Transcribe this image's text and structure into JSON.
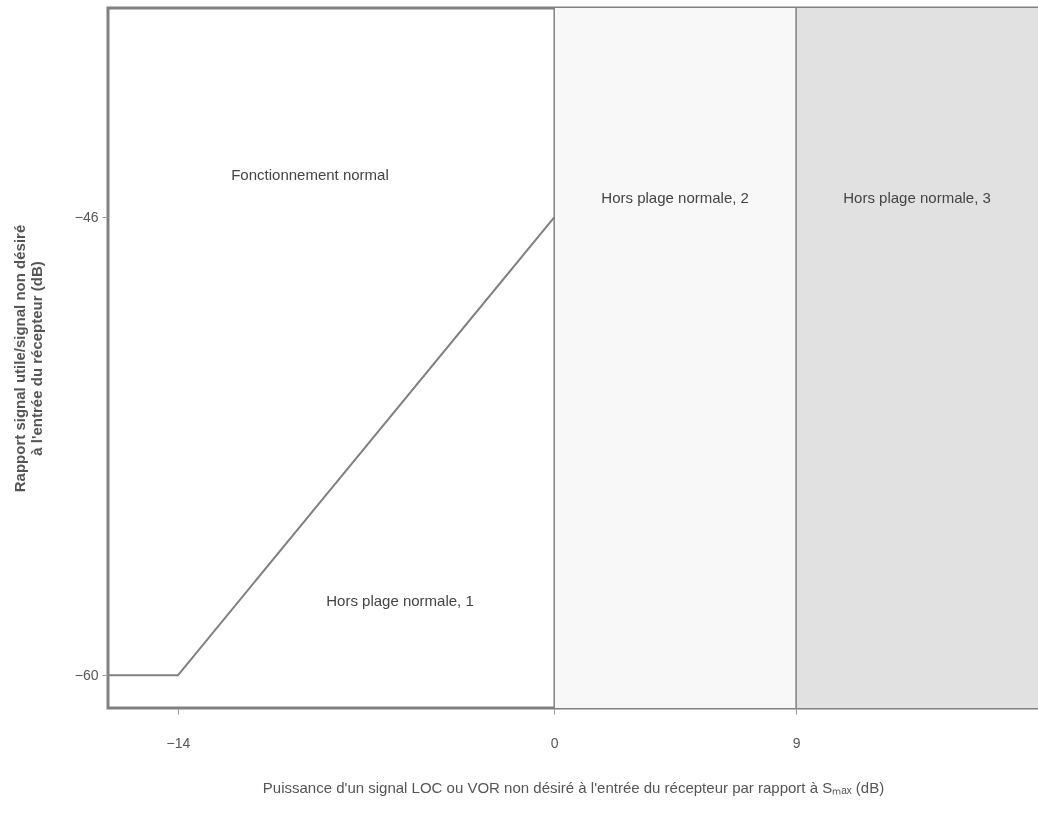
{
  "chart_data": {
    "type": "line",
    "xlabel": "Puissance d'un signal LOC ou VOR non désiré à l'entrée du récepteur par rapport à Sₘₐₓ (dB)",
    "ylabel": "Rapport signal utile/signal non désiré\nà l'entrée du récepteur (dB)",
    "series": [
      {
        "color": "#808080",
        "x": [
          -16.6,
          -14,
          0
        ],
        "values": [
          -60,
          -60,
          -46
        ]
      }
    ],
    "xlim": [
      -16.6,
      18
    ],
    "xticks": [
      -14,
      0,
      9
    ],
    "ylim": [
      -61,
      -39.6
    ],
    "yticks": [
      -60,
      -46
    ],
    "bands": [
      {
        "axis": "x",
        "from": 0,
        "to": 9,
        "label": "Hors plage normale, 2",
        "color": "#f8f8f8"
      },
      {
        "axis": "x",
        "from": 9,
        "to": 18,
        "label": "Hors plage normale, 3",
        "color": "#e1e1e1"
      }
    ],
    "ref_lines": [
      {
        "axis": "x",
        "value": 0,
        "color": "#808080"
      },
      {
        "axis": "x",
        "value": 9,
        "color": "#808080"
      }
    ],
    "annotations": [
      "Fonctionnement normal",
      "Hors plage normale, 1"
    ],
    "grid": false,
    "marker": "none",
    "line_style": "solid"
  }
}
